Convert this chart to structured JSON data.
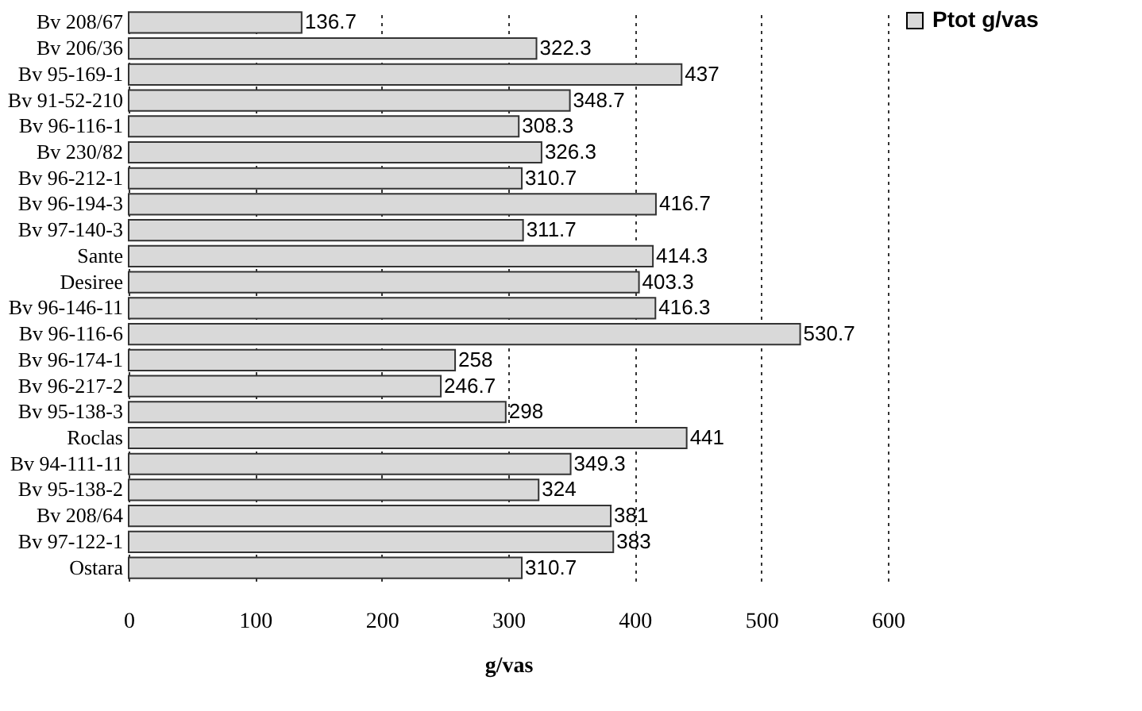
{
  "chart_data": {
    "type": "bar",
    "orientation": "horizontal",
    "xlabel": "g/vas",
    "categories": [
      "Bv 208/67",
      "Bv 206/36",
      "Bv 95-169-1",
      "Bv 91-52-210",
      "Bv 96-116-1",
      "Bv 230/82",
      "Bv 96-212-1",
      "Bv 96-194-3",
      "Bv 97-140-3",
      "Sante",
      "Desiree",
      "Bv 96-146-11",
      "Bv 96-116-6",
      "Bv 96-174-1",
      "Bv 96-217-2",
      "Bv 95-138-3",
      "Roclas",
      "Bv 94-111-11",
      "Bv 95-138-2",
      "Bv 208/64",
      "Bv 97-122-1",
      "Ostara"
    ],
    "series": [
      {
        "name": "Ptot g/vas",
        "color": "#d9d9d9",
        "values": [
          136.7,
          322.3,
          437,
          348.7,
          308.3,
          326.3,
          310.7,
          416.7,
          311.7,
          414.3,
          403.3,
          416.3,
          530.7,
          258,
          246.7,
          298,
          441,
          349.3,
          324,
          381,
          383,
          310.7
        ]
      }
    ],
    "xlim": [
      0,
      600
    ],
    "xticks": [
      0,
      100,
      200,
      300,
      400,
      500,
      600
    ],
    "grid": "x",
    "legend": "right",
    "data_labels": true
  }
}
